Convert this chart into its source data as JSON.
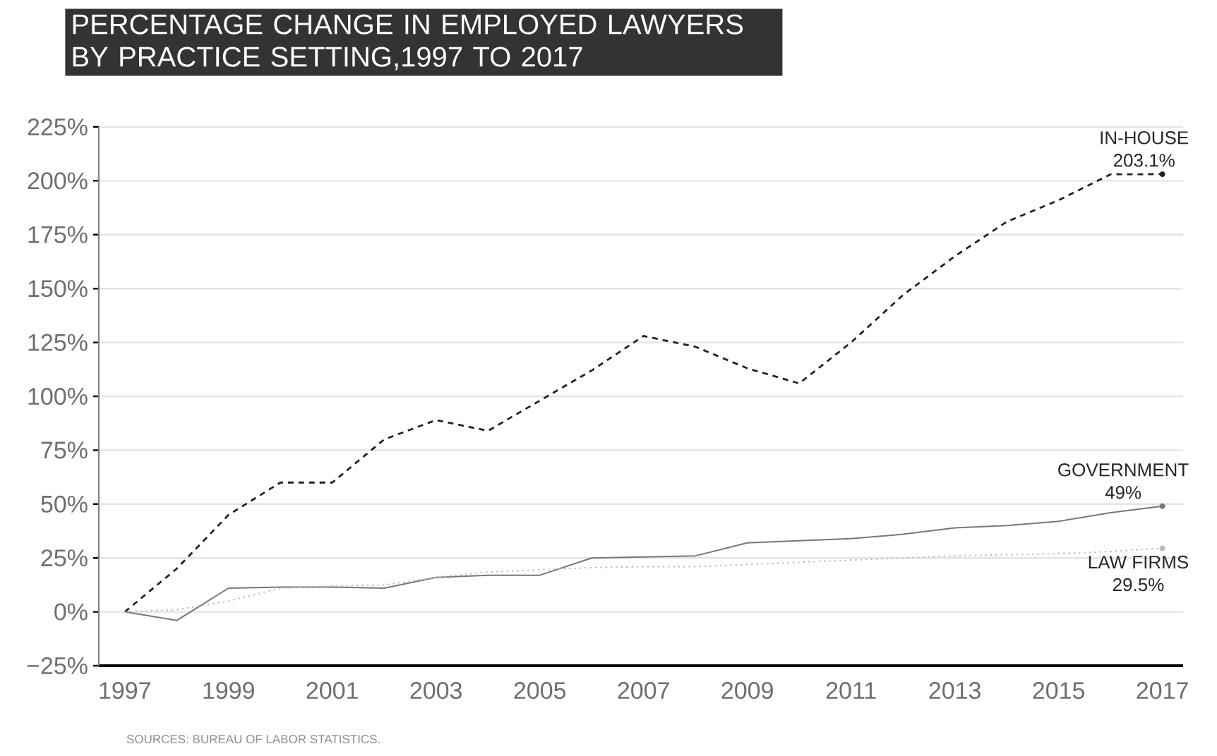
{
  "chart_data": {
    "type": "line",
    "title": "PERCENTAGE CHANGE IN EMPLOYED LAWYERS BY PRACTICE SETTING,1997 TO 2017",
    "x": [
      1997,
      1998,
      1999,
      2000,
      2001,
      2002,
      2003,
      2004,
      2005,
      2006,
      2007,
      2008,
      2009,
      2010,
      2011,
      2012,
      2013,
      2014,
      2015,
      2016,
      2017
    ],
    "series": [
      {
        "name": "IN-HOUSE",
        "color": "#222222",
        "line_style": "dashed",
        "values": [
          0,
          20,
          45,
          60,
          60,
          80,
          89,
          84,
          98,
          112,
          128,
          123,
          113,
          106,
          125,
          147,
          165,
          181,
          191,
          203,
          203.1
        ],
        "value_labels": [
          null,
          null,
          null,
          null,
          null,
          null,
          null,
          null,
          null,
          null,
          null,
          null,
          null,
          null,
          null,
          null,
          null,
          null,
          null,
          null,
          "203.1%"
        ]
      },
      {
        "name": "GOVERNMENT",
        "color": "#777777",
        "line_style": "solid",
        "values": [
          0,
          -4,
          11,
          11.5,
          11.5,
          11,
          16,
          17,
          17,
          25,
          25.5,
          26,
          32,
          33,
          34,
          36,
          39,
          40,
          42,
          46,
          49
        ],
        "value_labels": [
          null,
          null,
          null,
          null,
          null,
          null,
          null,
          null,
          null,
          null,
          null,
          null,
          null,
          null,
          null,
          null,
          null,
          null,
          null,
          null,
          "49%"
        ]
      },
      {
        "name": "LAW FIRMS",
        "color": "#bbbbbb",
        "line_style": "dotted",
        "values": [
          0,
          1,
          5,
          11,
          12,
          12.5,
          16,
          18.5,
          19.5,
          20.5,
          21,
          21,
          22,
          23,
          24,
          25,
          26,
          26.5,
          27,
          28,
          29.5
        ],
        "value_labels": [
          null,
          null,
          null,
          null,
          null,
          null,
          null,
          null,
          null,
          null,
          null,
          null,
          null,
          null,
          null,
          null,
          null,
          null,
          null,
          null,
          "29.5%"
        ]
      }
    ],
    "xlim": [
      1996.5,
      2017.4
    ],
    "xticks": [
      1997,
      1999,
      2001,
      2003,
      2005,
      2007,
      2009,
      2011,
      2013,
      2015,
      2017
    ],
    "ylim": [
      -25,
      225
    ],
    "yticks": [
      {
        "value": -25,
        "label": "−25%"
      },
      {
        "value": 0,
        "label": "0%"
      },
      {
        "value": 25,
        "label": "25%"
      },
      {
        "value": 50,
        "label": "50%"
      },
      {
        "value": 75,
        "label": "75%"
      },
      {
        "value": 100,
        "label": "100%"
      },
      {
        "value": 125,
        "label": "125%"
      },
      {
        "value": 150,
        "label": "150%"
      },
      {
        "value": 175,
        "label": "175%"
      },
      {
        "value": 200,
        "label": "200%"
      },
      {
        "value": 225,
        "label": "225%"
      }
    ],
    "grid": "y",
    "legend": false,
    "annotations": [
      "SOURCES: BUREAU OF LABOR STATISTICS."
    ]
  }
}
